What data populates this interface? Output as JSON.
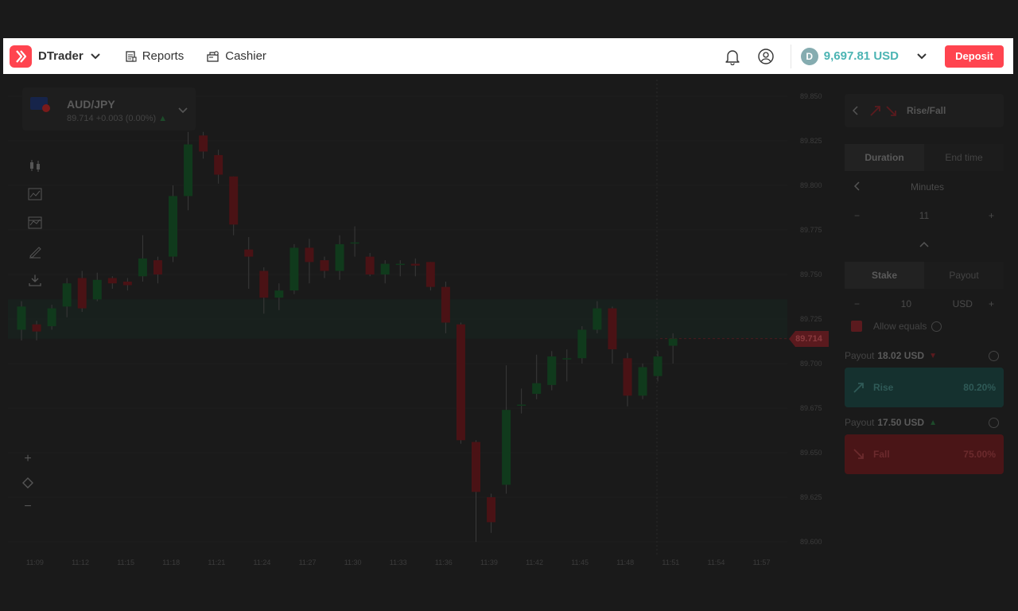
{
  "header": {
    "app_name": "DTrader",
    "nav": [
      {
        "label": "Reports",
        "icon": "reports-icon"
      },
      {
        "label": "Cashier",
        "icon": "cashier-icon"
      }
    ],
    "balance": "9,697.81 USD",
    "currency_symbol": "D",
    "deposit_label": "Deposit",
    "colors": {
      "brand": "#ff444f",
      "balance": "#4bb4b3"
    }
  },
  "symbol": {
    "name": "AUD/JPY",
    "quote": "89.714 +0.003 (0.00%)"
  },
  "chart_data": {
    "type": "candlestick",
    "y_ticks": [
      "89.850",
      "89.825",
      "89.800",
      "89.775",
      "89.750",
      "89.725",
      "89.700",
      "89.675",
      "89.650",
      "89.625",
      "89.600"
    ],
    "x_ticks": [
      "11:09",
      "11:12",
      "11:15",
      "11:18",
      "11:21",
      "11:24",
      "11:27",
      "11:30",
      "11:33",
      "11:36",
      "11:39",
      "11:42",
      "11:45",
      "11:48",
      "11:51",
      "11:54",
      "11:57"
    ],
    "current_price": "89.714",
    "ylim": [
      89.6,
      89.85
    ],
    "candles": [
      {
        "o": 89.719,
        "c": 89.732,
        "h": 89.735,
        "l": 89.713
      },
      {
        "o": 89.722,
        "c": 89.718,
        "h": 89.724,
        "l": 89.713
      },
      {
        "o": 89.721,
        "c": 89.731,
        "h": 89.733,
        "l": 89.719
      },
      {
        "o": 89.732,
        "c": 89.745,
        "h": 89.748,
        "l": 89.726
      },
      {
        "o": 89.748,
        "c": 89.731,
        "h": 89.752,
        "l": 89.729
      },
      {
        "o": 89.736,
        "c": 89.747,
        "h": 89.751,
        "l": 89.735
      },
      {
        "o": 89.748,
        "c": 89.745,
        "h": 89.749,
        "l": 89.742
      },
      {
        "o": 89.746,
        "c": 89.744,
        "h": 89.748,
        "l": 89.741
      },
      {
        "o": 89.749,
        "c": 89.759,
        "h": 89.772,
        "l": 89.746
      },
      {
        "o": 89.758,
        "c": 89.75,
        "h": 89.76,
        "l": 89.745
      },
      {
        "o": 89.76,
        "c": 89.794,
        "h": 89.8,
        "l": 89.757
      },
      {
        "o": 89.794,
        "c": 89.823,
        "h": 89.83,
        "l": 89.786
      },
      {
        "o": 89.828,
        "c": 89.819,
        "h": 89.83,
        "l": 89.815
      },
      {
        "o": 89.817,
        "c": 89.806,
        "h": 89.82,
        "l": 89.801
      },
      {
        "o": 89.805,
        "c": 89.778,
        "h": 89.805,
        "l": 89.772
      },
      {
        "o": 89.764,
        "c": 89.76,
        "h": 89.771,
        "l": 89.742
      },
      {
        "o": 89.752,
        "c": 89.737,
        "h": 89.754,
        "l": 89.728
      },
      {
        "o": 89.737,
        "c": 89.741,
        "h": 89.745,
        "l": 89.73
      },
      {
        "o": 89.741,
        "c": 89.765,
        "h": 89.767,
        "l": 89.739
      },
      {
        "o": 89.765,
        "c": 89.757,
        "h": 89.77,
        "l": 89.745
      },
      {
        "o": 89.758,
        "c": 89.752,
        "h": 89.76,
        "l": 89.748
      },
      {
        "o": 89.752,
        "c": 89.767,
        "h": 89.772,
        "l": 89.747
      },
      {
        "o": 89.768,
        "c": 89.768,
        "h": 89.777,
        "l": 89.76
      },
      {
        "o": 89.76,
        "c": 89.75,
        "h": 89.762,
        "l": 89.749
      },
      {
        "o": 89.75,
        "c": 89.756,
        "h": 89.758,
        "l": 89.745
      },
      {
        "o": 89.756,
        "c": 89.756,
        "h": 89.758,
        "l": 89.749
      },
      {
        "o": 89.756,
        "c": 89.755,
        "h": 89.759,
        "l": 89.749
      },
      {
        "o": 89.757,
        "c": 89.743,
        "h": 89.757,
        "l": 89.741
      },
      {
        "o": 89.743,
        "c": 89.723,
        "h": 89.746,
        "l": 89.717
      },
      {
        "o": 89.722,
        "c": 89.657,
        "h": 89.723,
        "l": 89.655
      },
      {
        "o": 89.656,
        "c": 89.628,
        "h": 89.657,
        "l": 89.6
      },
      {
        "o": 89.625,
        "c": 89.611,
        "h": 89.627,
        "l": 89.605
      },
      {
        "o": 89.632,
        "c": 89.674,
        "h": 89.699,
        "l": 89.627
      },
      {
        "o": 89.677,
        "c": 89.677,
        "h": 89.686,
        "l": 89.672
      },
      {
        "o": 89.683,
        "c": 89.689,
        "h": 89.705,
        "l": 89.68
      },
      {
        "o": 89.688,
        "c": 89.704,
        "h": 89.707,
        "l": 89.685
      },
      {
        "o": 89.703,
        "c": 89.703,
        "h": 89.708,
        "l": 89.69
      },
      {
        "o": 89.703,
        "c": 89.719,
        "h": 89.721,
        "l": 89.7
      },
      {
        "o": 89.719,
        "c": 89.731,
        "h": 89.735,
        "l": 89.717
      },
      {
        "o": 89.731,
        "c": 89.708,
        "h": 89.732,
        "l": 89.7
      },
      {
        "o": 89.703,
        "c": 89.682,
        "h": 89.706,
        "l": 89.676
      },
      {
        "o": 89.682,
        "c": 89.698,
        "h": 89.7,
        "l": 89.68
      },
      {
        "o": 89.693,
        "c": 89.704,
        "h": 89.707,
        "l": 89.69
      },
      {
        "o": 89.71,
        "c": 89.714,
        "h": 89.717,
        "l": 89.7
      }
    ]
  },
  "trade": {
    "trade_type": "Rise/Fall",
    "duration_tabs": [
      "Duration",
      "End time"
    ],
    "duration_unit": "Minutes",
    "duration_value": "11",
    "amount_tabs": [
      "Stake",
      "Payout"
    ],
    "stake_value": "10",
    "stake_currency": "USD",
    "allow_equals": "Allow equals",
    "payout_label": "Payout",
    "rise": {
      "payout": "18.02 USD",
      "label": "Rise",
      "pct": "80.20%"
    },
    "fall": {
      "payout": "17.50 USD",
      "label": "Fall",
      "pct": "75.00%"
    }
  }
}
